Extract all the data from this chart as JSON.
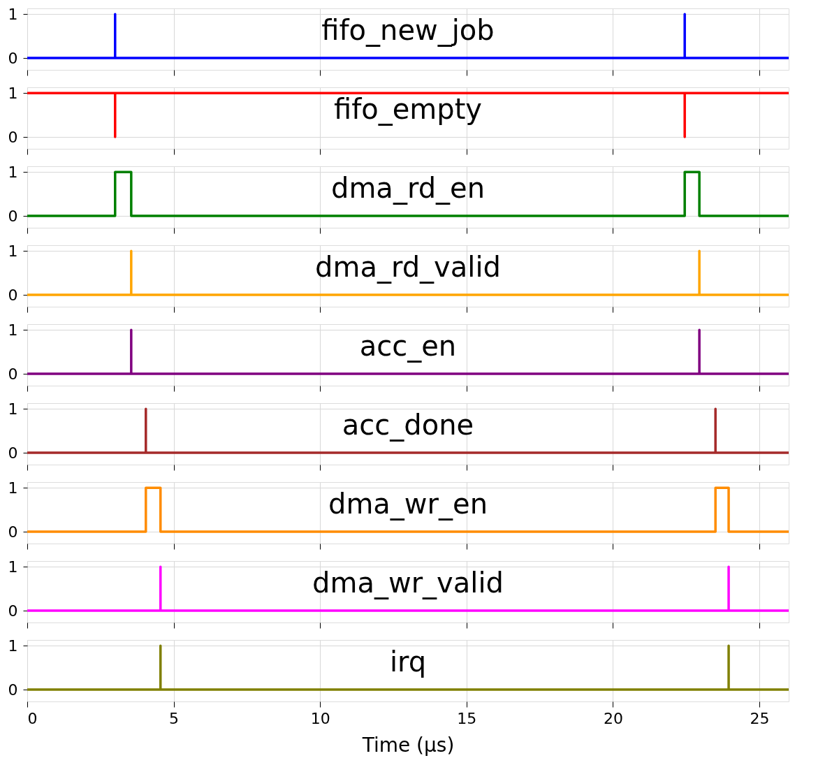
{
  "chart_data": [
    {
      "type": "step",
      "series": [
        {
          "name": "fifo_new_job",
          "color": "#0000ff",
          "x": [
            0,
            3.0,
            3.0,
            22.45,
            22.45,
            26
          ],
          "values": [
            0,
            1,
            0,
            1,
            0,
            0
          ]
        }
      ],
      "xlim": [
        0,
        26
      ],
      "xticks": [
        0,
        5,
        10,
        15,
        20,
        25
      ],
      "ylim": [
        -0.27,
        1.13
      ],
      "yticks": [
        0,
        1
      ],
      "grid": true,
      "tick_labels": "y"
    },
    {
      "type": "step",
      "series": [
        {
          "name": "fifo_empty",
          "color": "#ff0000",
          "x": [
            0,
            3.0,
            3.0,
            22.45,
            22.45,
            26
          ],
          "values": [
            1,
            0,
            1,
            0,
            1,
            1
          ]
        }
      ],
      "xlim": [
        0,
        26
      ],
      "xticks": [
        0,
        5,
        10,
        15,
        20,
        25
      ],
      "ylim": [
        -0.27,
        1.13
      ],
      "yticks": [
        0,
        1
      ],
      "grid": true,
      "tick_labels": "y"
    },
    {
      "type": "step",
      "series": [
        {
          "name": "dma_rd_en",
          "color": "#008000",
          "x": [
            0,
            3.0,
            3.55,
            22.45,
            22.95,
            26
          ],
          "values": [
            0,
            1,
            0,
            1,
            0,
            0
          ]
        }
      ],
      "xlim": [
        0,
        26
      ],
      "xticks": [
        0,
        5,
        10,
        15,
        20,
        25
      ],
      "ylim": [
        -0.27,
        1.13
      ],
      "yticks": [
        0,
        1
      ],
      "grid": true,
      "tick_labels": "y"
    },
    {
      "type": "step",
      "series": [
        {
          "name": "dma_rd_valid",
          "color": "#ffa500",
          "x": [
            0,
            3.55,
            3.55,
            22.95,
            22.95,
            26
          ],
          "values": [
            0,
            1,
            0,
            1,
            0,
            0
          ]
        }
      ],
      "xlim": [
        0,
        26
      ],
      "xticks": [
        0,
        5,
        10,
        15,
        20,
        25
      ],
      "ylim": [
        -0.27,
        1.13
      ],
      "yticks": [
        0,
        1
      ],
      "grid": true,
      "tick_labels": "y"
    },
    {
      "type": "step",
      "series": [
        {
          "name": "acc_en",
          "color": "#800080",
          "x": [
            0,
            3.55,
            3.55,
            22.95,
            22.95,
            26
          ],
          "values": [
            0,
            1,
            0,
            1,
            0,
            0
          ]
        }
      ],
      "xlim": [
        0,
        26
      ],
      "xticks": [
        0,
        5,
        10,
        15,
        20,
        25
      ],
      "ylim": [
        -0.27,
        1.13
      ],
      "yticks": [
        0,
        1
      ],
      "grid": true,
      "tick_labels": "y"
    },
    {
      "type": "step",
      "series": [
        {
          "name": "acc_done",
          "color": "#a52a2a",
          "x": [
            0,
            4.05,
            4.05,
            23.5,
            23.5,
            26
          ],
          "values": [
            0,
            1,
            0,
            1,
            0,
            0
          ]
        }
      ],
      "xlim": [
        0,
        26
      ],
      "xticks": [
        0,
        5,
        10,
        15,
        20,
        25
      ],
      "ylim": [
        -0.27,
        1.13
      ],
      "yticks": [
        0,
        1
      ],
      "grid": true,
      "tick_labels": "y"
    },
    {
      "type": "step",
      "series": [
        {
          "name": "dma_wr_en",
          "color": "#ff8c00",
          "x": [
            0,
            4.05,
            4.55,
            23.5,
            23.95,
            26
          ],
          "values": [
            0,
            1,
            0,
            1,
            0,
            0
          ]
        }
      ],
      "xlim": [
        0,
        26
      ],
      "xticks": [
        0,
        5,
        10,
        15,
        20,
        25
      ],
      "ylim": [
        -0.27,
        1.13
      ],
      "yticks": [
        0,
        1
      ],
      "grid": true,
      "tick_labels": "y"
    },
    {
      "type": "step",
      "series": [
        {
          "name": "dma_wr_valid",
          "color": "#ff00ff",
          "x": [
            0,
            4.55,
            4.55,
            23.95,
            23.95,
            26
          ],
          "values": [
            0,
            1,
            0,
            1,
            0,
            0
          ]
        }
      ],
      "xlim": [
        0,
        26
      ],
      "xticks": [
        0,
        5,
        10,
        15,
        20,
        25
      ],
      "ylim": [
        -0.27,
        1.13
      ],
      "yticks": [
        0,
        1
      ],
      "grid": true,
      "tick_labels": "y"
    },
    {
      "type": "step",
      "xlabel": "Time (µs)",
      "series": [
        {
          "name": "irq",
          "color": "#808000",
          "x": [
            0,
            4.55,
            4.55,
            23.95,
            23.95,
            26
          ],
          "values": [
            0,
            1,
            0,
            1,
            0,
            0
          ]
        }
      ],
      "xlim": [
        0,
        26
      ],
      "xticks": [
        0,
        5,
        10,
        15,
        20,
        25
      ],
      "ylim": [
        -0.27,
        1.13
      ],
      "yticks": [
        0,
        1
      ],
      "grid": true
    }
  ]
}
